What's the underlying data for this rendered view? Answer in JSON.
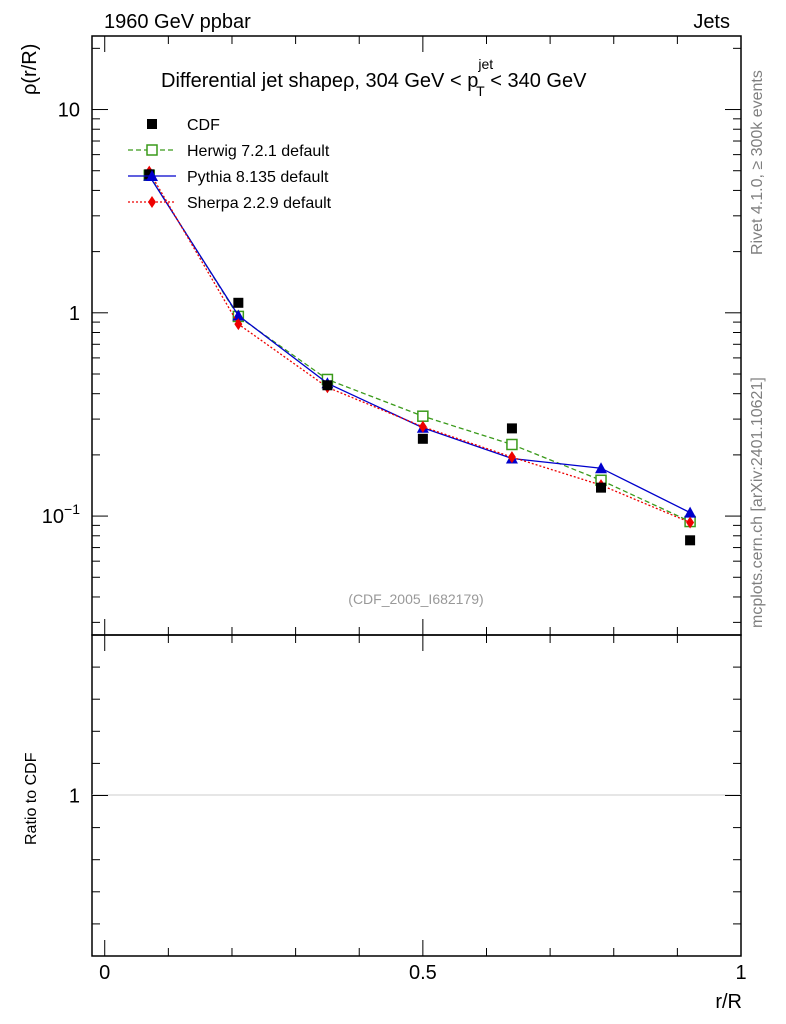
{
  "header": {
    "left": "1960 GeV ppbar",
    "right": "Jets",
    "title_prefix": "Differential jet shapeρ, 304 GeV < p",
    "title_sup": "jet",
    "title_sub": "T",
    "title_suffix": " < 340 GeV"
  },
  "side": {
    "rivet": "Rivet 4.1.0, ≥ 300k events",
    "mcplots": "mcplots.cern.ch [arXiv:2401.10621]"
  },
  "watermark": "(CDF_2005_I682179)",
  "colors": {
    "cdf": "#000000",
    "herwig": "#3a9a1a",
    "pythia": "#0000cc",
    "sherpa": "#ee0000",
    "axis": "#000000"
  },
  "chart_data": [
    {
      "type": "scatter",
      "panel": "main",
      "title": "Differential jet shapeρ, 304 GeV < p_T^jet < 340 GeV",
      "xlabel": "",
      "ylabel": "ρ(r/R)",
      "yscale": "log",
      "xlim": [
        -0.02,
        1.0
      ],
      "ylim": [
        0.026,
        23
      ],
      "legend_position": "top-left",
      "yticks": [
        {
          "value": 10,
          "label": "10",
          "base": "",
          "exp": ""
        },
        {
          "value": 1,
          "label": "1",
          "base": "",
          "exp": ""
        },
        {
          "value": 0.1,
          "label": "",
          "base": "10",
          "exp": "−1"
        }
      ],
      "series": [
        {
          "name": "CDF",
          "style": "data",
          "x": [
            0.07,
            0.21,
            0.35,
            0.5,
            0.64,
            0.78,
            0.92
          ],
          "values": [
            4.8,
            1.12,
            0.44,
            0.24,
            0.27,
            0.138,
            0.076
          ]
        },
        {
          "name": "Herwig 7.2.1 default",
          "style": "herwig",
          "x": [
            0.07,
            0.21,
            0.35,
            0.5,
            0.64,
            0.78,
            0.92
          ],
          "values": [
            4.75,
            0.96,
            0.47,
            0.31,
            0.225,
            0.15,
            0.094
          ]
        },
        {
          "name": "Pythia 8.135 default",
          "style": "pythia",
          "x": [
            0.07,
            0.21,
            0.35,
            0.5,
            0.64,
            0.78,
            0.92
          ],
          "values": [
            4.72,
            0.97,
            0.45,
            0.272,
            0.192,
            0.172,
            0.104
          ]
        },
        {
          "name": "Sherpa 2.2.9 default",
          "style": "sherpa",
          "x": [
            0.07,
            0.21,
            0.35,
            0.5,
            0.64,
            0.78,
            0.92
          ],
          "values": [
            4.95,
            0.88,
            0.43,
            0.275,
            0.195,
            0.142,
            0.093
          ]
        }
      ]
    },
    {
      "type": "line",
      "panel": "ratio",
      "xlabel": "r/R",
      "ylabel": "Ratio to CDF",
      "xlim": [
        -0.02,
        1.0
      ],
      "ylim": [
        0.5,
        1.5
      ],
      "xticks": [
        {
          "value": 0,
          "label": "0"
        },
        {
          "value": 0.5,
          "label": "0.5"
        },
        {
          "value": 1,
          "label": "1"
        }
      ],
      "yticks": [
        {
          "value": 1,
          "label": "1"
        }
      ],
      "series": []
    }
  ]
}
